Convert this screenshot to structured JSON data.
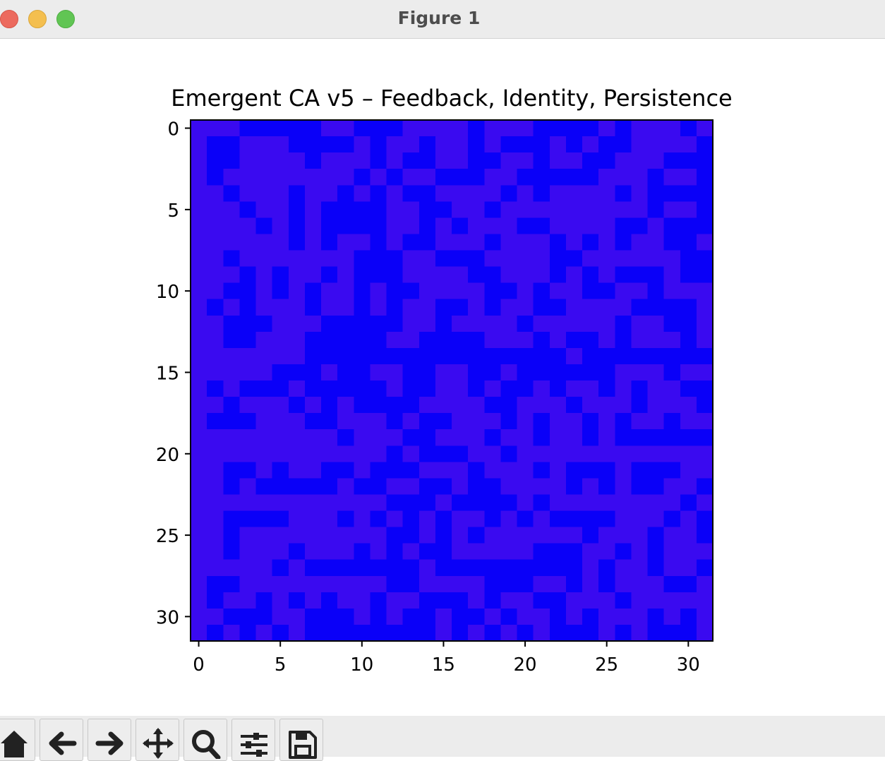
{
  "window": {
    "title": "Figure 1"
  },
  "chart_data": {
    "type": "heatmap",
    "title": "Emergent CA v5 – Feedback, Identity, Persistence",
    "rows": 32,
    "cols": 32,
    "x_ticks": [
      "0",
      "5",
      "10",
      "15",
      "20",
      "25",
      "30"
    ],
    "y_ticks": [
      "0",
      "5",
      "10",
      "15",
      "20",
      "25",
      "30"
    ],
    "palette": [
      "#0a00f8",
      "#3a0af0"
    ],
    "cells": [
      "11100000110001111011100001011101",
      "10011100001011011010001010011110",
      "10011110111010011001101100111000",
      "10111111110101100011000001110110",
      "11011101101010011110101111010000",
      "11101101000011001101111111110110",
      "11110101000011010111001111001000",
      "11111101011010011101110101011001",
      "11011111110001100011110011111100",
      "11101011010001111001110101000100",
      "11001010110100111100101100110111",
      "10101110110101100101100111100001",
      "11000111000001101111011111011001",
      "11001110000011000011101001011101",
      "11111110000000000000000100000000",
      "11111000100110011001000000111011",
      "10100010000010011010010110101100",
      "11011101010000111100111011101110",
      "10001110011101001110101101011011",
      "11111111101110011101101101000000",
      "11111111111101000110111111111111",
      "11001011001000111011101000100011",
      "11010000010011001001111010100110",
      "11111111111100010000101111111101",
      "11000011101010101101010000111010",
      "11011111111100101011111101110110",
      "11011101110101001111100011010111",
      "11111010000000100000000010110110",
      "10011111111100111100011010111001",
      "10110101011011000101100111011111",
      "11000110001010010010110101110101",
      "10101010000000010101010001010001"
    ]
  },
  "toolbar": {
    "buttons": [
      {
        "name": "home-button",
        "icon": "home-icon"
      },
      {
        "name": "back-button",
        "icon": "arrow-left-icon"
      },
      {
        "name": "forward-button",
        "icon": "arrow-right-icon"
      },
      {
        "name": "pan-button",
        "icon": "move-icon"
      },
      {
        "name": "zoom-button",
        "icon": "zoom-icon"
      },
      {
        "name": "configure-subplots-button",
        "icon": "sliders-icon"
      },
      {
        "name": "save-button",
        "icon": "save-icon"
      }
    ]
  }
}
